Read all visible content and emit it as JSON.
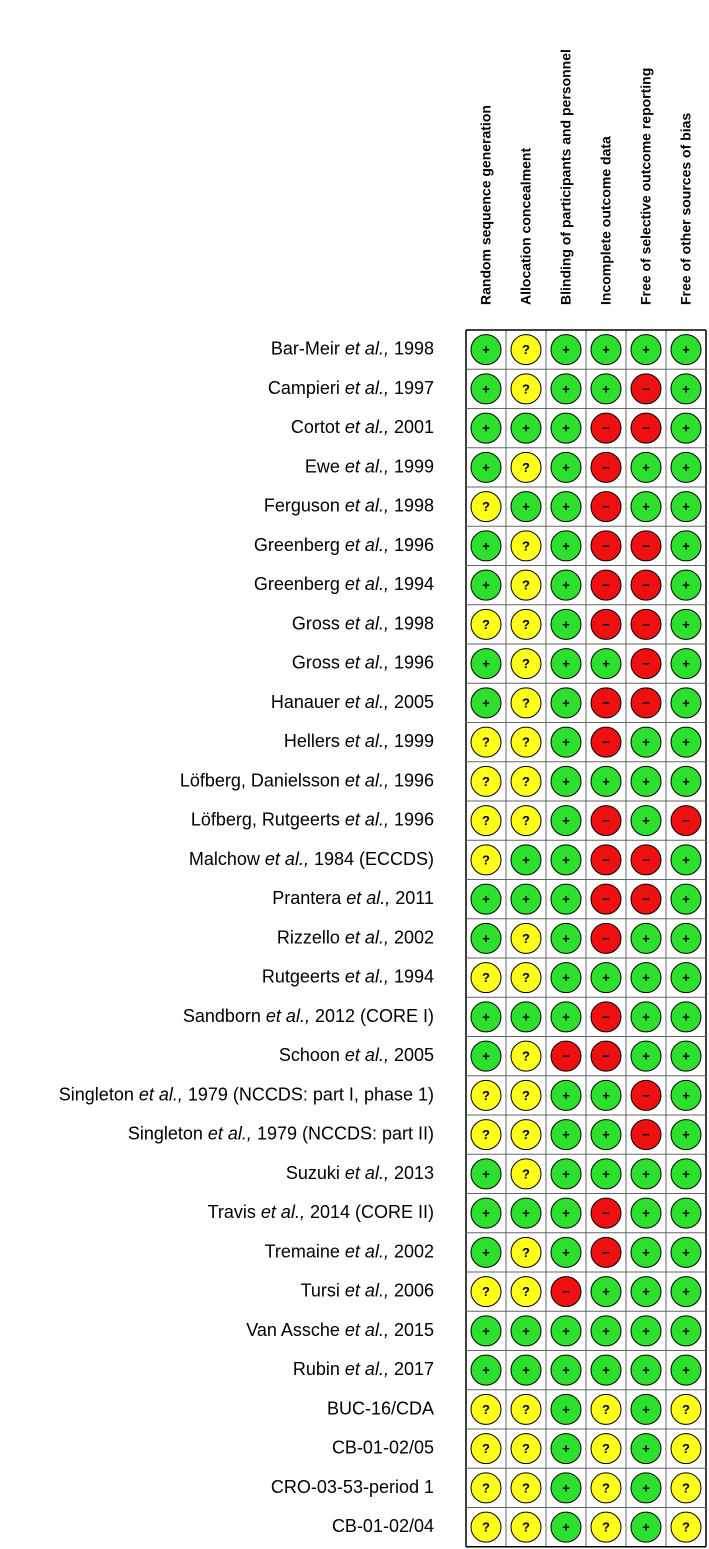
{
  "domains": [
    "Random sequence generation",
    "Allocation concealment",
    "Blinding of participants and personnel",
    "Incomplete outcome data",
    "Free of selective outcome reporting",
    "Free of other sources of bias"
  ],
  "judgement_colors": [
    {
      "symbol": "+",
      "color": "#2ee02e"
    },
    {
      "symbol": "?",
      "color": "#ffff1a"
    },
    {
      "symbol": "−",
      "color": "#ee1010"
    }
  ],
  "studies": [
    {
      "label": [
        "Bar-Meir ",
        "et al.,",
        " 1998"
      ],
      "judgements": [
        "+",
        "?",
        "+",
        "+",
        "+",
        "+"
      ]
    },
    {
      "label": [
        "Campieri ",
        "et al.,",
        " 1997"
      ],
      "judgements": [
        "+",
        "?",
        "+",
        "+",
        "−",
        "+"
      ]
    },
    {
      "label": [
        "Cortot ",
        "et al.,",
        " 2001"
      ],
      "judgements": [
        "+",
        "+",
        "+",
        "−",
        "−",
        "+"
      ]
    },
    {
      "label": [
        "Ewe ",
        "et al.,",
        " 1999"
      ],
      "judgements": [
        "+",
        "?",
        "+",
        "−",
        "+",
        "+"
      ]
    },
    {
      "label": [
        "Ferguson ",
        "et al.,",
        " 1998"
      ],
      "judgements": [
        "?",
        "+",
        "+",
        "−",
        "+",
        "+"
      ]
    },
    {
      "label": [
        "Greenberg ",
        "et al.,",
        " 1996"
      ],
      "judgements": [
        "+",
        "?",
        "+",
        "−",
        "−",
        "+"
      ]
    },
    {
      "label": [
        "Greenberg ",
        "et al.,",
        " 1994"
      ],
      "judgements": [
        "+",
        "?",
        "+",
        "−",
        "−",
        "+"
      ]
    },
    {
      "label": [
        "Gross ",
        "et al.,",
        " 1998"
      ],
      "judgements": [
        "?",
        "?",
        "+",
        "−",
        "−",
        "+"
      ]
    },
    {
      "label": [
        "Gross ",
        "et al.,",
        " 1996"
      ],
      "judgements": [
        "+",
        "?",
        "+",
        "+",
        "−",
        "+"
      ]
    },
    {
      "label": [
        "Hanauer ",
        "et al.,",
        " 2005"
      ],
      "judgements": [
        "+",
        "?",
        "+",
        "−",
        "−",
        "+"
      ]
    },
    {
      "label": [
        "Hellers ",
        "et al.,",
        " 1999"
      ],
      "judgements": [
        "?",
        "?",
        "+",
        "−",
        "+",
        "+"
      ]
    },
    {
      "label": [
        "Löfberg, Danielsson ",
        "et al.,",
        " 1996"
      ],
      "judgements": [
        "?",
        "?",
        "+",
        "+",
        "+",
        "+"
      ]
    },
    {
      "label": [
        "Löfberg, Rutgeerts ",
        "et al.,",
        " 1996"
      ],
      "judgements": [
        "?",
        "?",
        "+",
        "−",
        "+",
        "−"
      ]
    },
    {
      "label": [
        "Malchow ",
        "et al.,",
        " 1984 (ECCDS)"
      ],
      "judgements": [
        "?",
        "+",
        "+",
        "−",
        "−",
        "+"
      ]
    },
    {
      "label": [
        "Prantera ",
        "et al.,",
        " 2011"
      ],
      "judgements": [
        "+",
        "+",
        "+",
        "−",
        "−",
        "+"
      ]
    },
    {
      "label": [
        "Rizzello ",
        "et al.,",
        " 2002"
      ],
      "judgements": [
        "+",
        "?",
        "+",
        "−",
        "+",
        "+"
      ]
    },
    {
      "label": [
        "Rutgeerts ",
        "et al.,",
        " 1994"
      ],
      "judgements": [
        "?",
        "?",
        "+",
        "+",
        "+",
        "+"
      ]
    },
    {
      "label": [
        "Sandborn ",
        "et al.,",
        " 2012 (CORE I)"
      ],
      "judgements": [
        "+",
        "+",
        "+",
        "−",
        "+",
        "+"
      ]
    },
    {
      "label": [
        "Schoon ",
        "et al.,",
        " 2005"
      ],
      "judgements": [
        "+",
        "?",
        "−",
        "−",
        "+",
        "+"
      ]
    },
    {
      "label": [
        "Singleton ",
        "et al.,",
        " 1979 (NCCDS: part I, phase 1)"
      ],
      "judgements": [
        "?",
        "?",
        "+",
        "+",
        "−",
        "+"
      ]
    },
    {
      "label": [
        "Singleton ",
        "et al.,",
        " 1979 (NCCDS: part II)"
      ],
      "judgements": [
        "?",
        "?",
        "+",
        "+",
        "−",
        "+"
      ]
    },
    {
      "label": [
        "Suzuki ",
        "et al.,",
        " 2013"
      ],
      "judgements": [
        "+",
        "?",
        "+",
        "+",
        "+",
        "+"
      ]
    },
    {
      "label": [
        "Travis ",
        "et al.,",
        " 2014 (CORE II)"
      ],
      "judgements": [
        "+",
        "+",
        "+",
        "−",
        "+",
        "+"
      ]
    },
    {
      "label": [
        "Tremaine ",
        "et al.,",
        " 2002"
      ],
      "judgements": [
        "+",
        "?",
        "+",
        "−",
        "+",
        "+"
      ]
    },
    {
      "label": [
        "Tursi ",
        "et al.,",
        " 2006"
      ],
      "judgements": [
        "?",
        "?",
        "−",
        "+",
        "+",
        "+"
      ]
    },
    {
      "label": [
        "Van Assche ",
        "et al.,",
        " 2015"
      ],
      "judgements": [
        "+",
        "+",
        "+",
        "+",
        "+",
        "+"
      ]
    },
    {
      "label": [
        "Rubin ",
        "et al.,",
        " 2017"
      ],
      "judgements": [
        "+",
        "+",
        "+",
        "+",
        "+",
        "+"
      ]
    },
    {
      "label": [
        "BUC-16/CDA"
      ],
      "judgements": [
        "?",
        "?",
        "+",
        "?",
        "+",
        "?"
      ]
    },
    {
      "label": [
        "CB-01-02/05"
      ],
      "judgements": [
        "?",
        "?",
        "+",
        "?",
        "+",
        "?"
      ]
    },
    {
      "label": [
        "CRO-03-53-period 1"
      ],
      "judgements": [
        "?",
        "?",
        "+",
        "?",
        "+",
        "?"
      ]
    },
    {
      "label": [
        "CB-01-02/04"
      ],
      "judgements": [
        "?",
        "?",
        "+",
        "?",
        "+",
        "?"
      ]
    }
  ]
}
